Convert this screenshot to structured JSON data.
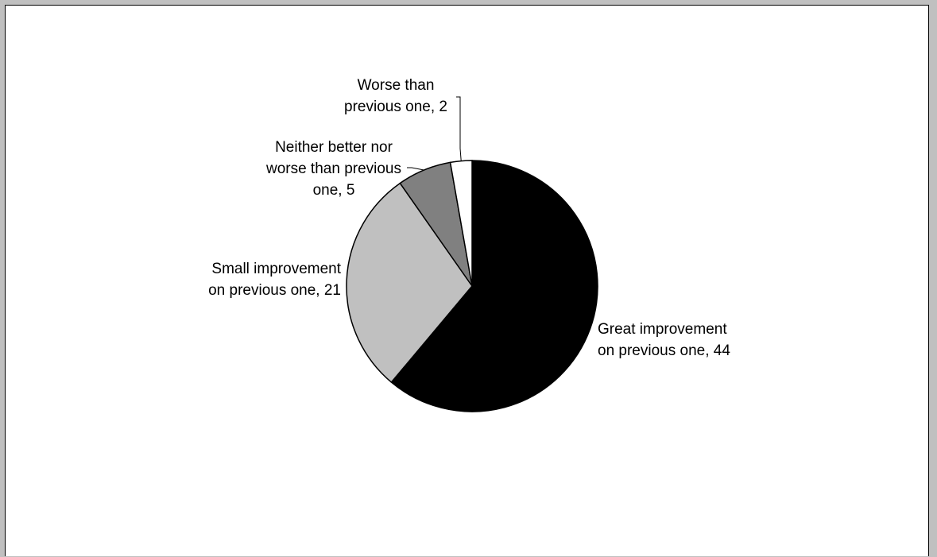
{
  "chart_data": {
    "type": "pie",
    "title": "",
    "start_angle_deg": 0,
    "direction": "clockwise",
    "slices": [
      {
        "label_line1": "Great improvement",
        "label_line2": "on previous one, 44",
        "category": "Great improvement on previous one",
        "value": 44,
        "color": "#000000"
      },
      {
        "label_line1": "Small improvement",
        "label_line2": "on previous one, 21",
        "category": "Small improvement on previous one",
        "value": 21,
        "color": "#c0c0c0"
      },
      {
        "label_line1": "Neither better nor",
        "label_line2": "worse than previous",
        "label_line3": "one, 5",
        "category": "Neither better nor worse than previous one",
        "value": 5,
        "color": "#808080"
      },
      {
        "label_line1": "Worse than",
        "label_line2": "previous one, 2",
        "category": "Worse than previous one",
        "value": 2,
        "color": "#ffffff"
      }
    ],
    "legend": "none",
    "data_labels": "outside"
  }
}
